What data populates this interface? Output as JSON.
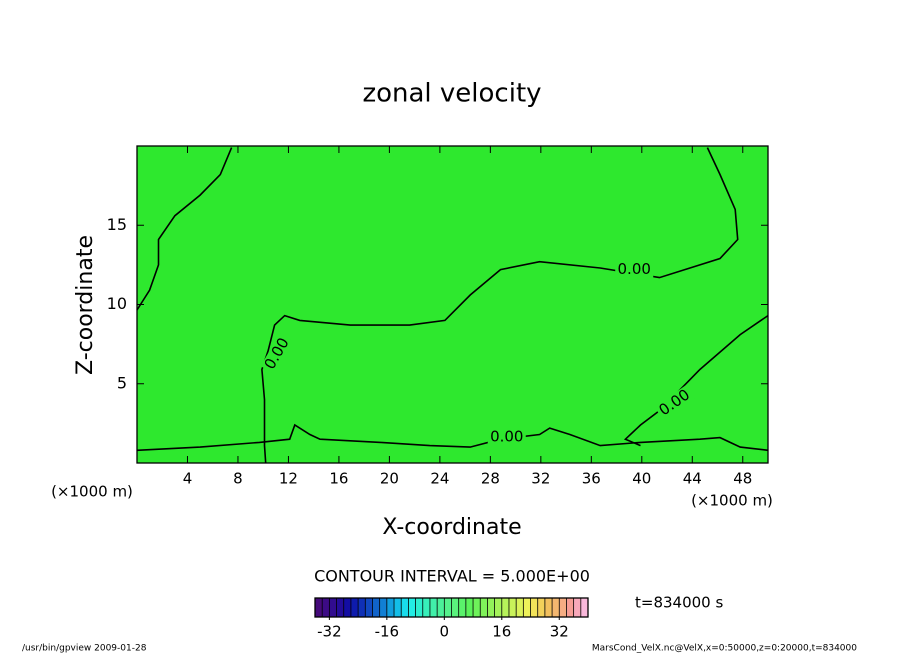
{
  "chart_data": {
    "type": "contour",
    "title": "zonal velocity",
    "x_label": "X-coordinate",
    "y_label": "Z-coordinate",
    "x_unit_left": "(×1000 m)",
    "x_unit_right": "(×1000 m)",
    "xlim": [
      0,
      50
    ],
    "xticks": [
      4,
      8,
      12,
      16,
      20,
      24,
      28,
      32,
      36,
      40,
      44,
      48
    ],
    "ylim": [
      0,
      20
    ],
    "yticks": [
      5,
      10,
      15
    ],
    "fill_color": "#2ee82e",
    "contours": [
      {
        "level": 0,
        "x": [
          0,
          1.0,
          1.7,
          1.7,
          3.0,
          5.0,
          6.6,
          7.5
        ],
        "y": [
          9.65,
          10.9,
          12.5,
          14.1,
          15.6,
          16.9,
          18.2,
          19.9
        ]
      },
      {
        "level": 0,
        "x": [
          45.2,
          46.2,
          47.4,
          47.6,
          46.2,
          41.4,
          36.7,
          31.9,
          28.8,
          26.4,
          24.4,
          21.6,
          16.9,
          12.9,
          11.7,
          10.9,
          10.4,
          9.9,
          10.1,
          10.1,
          10.2
        ],
        "y": [
          19.9,
          18.2,
          16.0,
          14.1,
          12.9,
          11.7,
          12.3,
          12.7,
          12.2,
          10.6,
          9.0,
          8.7,
          8.7,
          9.0,
          9.3,
          8.7,
          7.1,
          5.9,
          4.0,
          1.1,
          0
        ]
      },
      {
        "level": 0,
        "x": [
          50,
          47.8,
          44.6,
          41.4,
          39.9,
          38.7,
          39.9
        ],
        "y": [
          9.3,
          8.1,
          5.9,
          3.3,
          2.4,
          1.5,
          1.1
        ]
      },
      {
        "level": 0,
        "x": [
          0,
          5.0,
          9.7,
          12.1,
          12.5,
          13.7,
          14.5,
          19.3,
          23.2,
          26.4,
          28.8,
          31.9,
          32.7,
          34.3,
          36.7,
          39.9,
          44.6,
          46.2,
          47.8,
          50
        ],
        "y": [
          0.8,
          1.0,
          1.3,
          1.5,
          2.4,
          1.8,
          1.5,
          1.3,
          1.1,
          1.0,
          1.5,
          1.8,
          2.2,
          1.8,
          1.1,
          1.3,
          1.5,
          1.6,
          1.0,
          0.8
        ]
      }
    ],
    "contour_labels": [
      {
        "text": "0.00",
        "x": 11.1,
        "y": 6.9,
        "angle": -60
      },
      {
        "text": "0.00",
        "x": 39.4,
        "y": 12.2,
        "angle": 0
      },
      {
        "text": "0.00",
        "x": 42.6,
        "y": 3.8,
        "angle": -35
      },
      {
        "text": "0.00",
        "x": 29.3,
        "y": 1.65,
        "angle": 0
      }
    ],
    "contour_interval_label": "CONTOUR INTERVAL = 5.000E+00",
    "colorbar": {
      "lim": [
        -36,
        40
      ],
      "ticks": [
        -32,
        -16,
        0,
        16,
        32
      ]
    },
    "time_label": "t=834000 s",
    "footer_left": "/usr/bin/gpview  2009-01-28",
    "footer_right": "MarsCond_VelX.nc@VelX,x=0:50000,z=0:20000,t=834000"
  }
}
